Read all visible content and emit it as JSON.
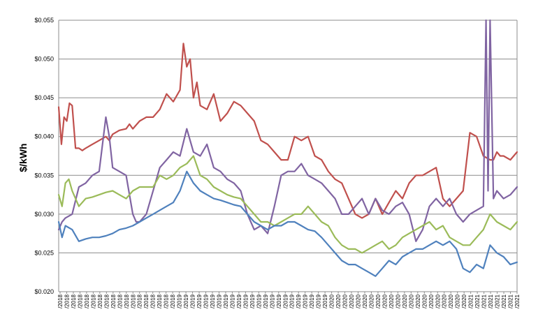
{
  "chart_data": {
    "type": "line",
    "title": "",
    "ylabel": "$/kWh",
    "xlabel": "",
    "ylim": [
      0.02,
      0.055
    ],
    "yticks": [
      "$0.020",
      "$0.025",
      "$0.030",
      "$0.035",
      "$0.040",
      "$0.045",
      "$0.050",
      "$0.055"
    ],
    "grid": true,
    "legend": "none",
    "x_tick_labels": [
      "/2018",
      "/2018",
      "/2018",
      "/2018",
      "/2018",
      "/2018",
      "/2018",
      "/2018",
      "/2018",
      "/2018",
      "/2018",
      "/2018",
      "/2018",
      "/2018",
      "/2018",
      "/2018",
      "/2018",
      "/2018",
      "/2019",
      "/2019",
      "/2019",
      "/2019",
      "/2019",
      "/2019",
      "/2019",
      "/2019",
      "/2019",
      "/2019",
      "/2019",
      "/2019",
      "/2019",
      "/2019",
      "/2019",
      "/2019",
      "/2019",
      "/2019",
      "/2019",
      "/2019",
      "/2019",
      "/2019",
      "/2019",
      "/2020",
      "/2020",
      "/2020",
      "/2020",
      "/2020",
      "/2020",
      "/2020",
      "/2020",
      "/2020",
      "/2020",
      "/2020",
      "/2020",
      "/2020",
      "/2020",
      "/2020",
      "/2020",
      "/2020",
      "/2020",
      "/2020",
      "/2020",
      "/2020",
      "/2021",
      "/2021",
      "/2021",
      "/2021",
      "/2021",
      "/2021",
      "/2021",
      "/2021"
    ],
    "x_domain": [
      0,
      68
    ],
    "series": [
      {
        "color": "#c0504d",
        "x": [
          0,
          0.4,
          0.8,
          1.2,
          1.6,
          2,
          2.5,
          3,
          3.5,
          4,
          5,
          6,
          7,
          7.5,
          8,
          9,
          10,
          10.5,
          11,
          12,
          13,
          14,
          15,
          16,
          17,
          18,
          18.5,
          19,
          19.5,
          20,
          20.5,
          21,
          22,
          23,
          24,
          25,
          26,
          27,
          28,
          29,
          30,
          31,
          32,
          33,
          34,
          35,
          36,
          37,
          38,
          39,
          40,
          41,
          42,
          43,
          44,
          45,
          46,
          47,
          48,
          49,
          50,
          51,
          52,
          53,
          54,
          55,
          56,
          57,
          58,
          59,
          60,
          61,
          62,
          63,
          64,
          64.5,
          65,
          65.5,
          66,
          67,
          68
        ],
        "y": [
          0.0438,
          0.039,
          0.0425,
          0.042,
          0.0443,
          0.044,
          0.0385,
          0.0385,
          0.0382,
          0.0385,
          0.039,
          0.0395,
          0.04,
          0.0395,
          0.0403,
          0.0408,
          0.041,
          0.0416,
          0.041,
          0.042,
          0.0425,
          0.0425,
          0.0435,
          0.0455,
          0.0445,
          0.046,
          0.052,
          0.049,
          0.05,
          0.045,
          0.047,
          0.044,
          0.0435,
          0.0455,
          0.042,
          0.043,
          0.0445,
          0.044,
          0.043,
          0.042,
          0.0395,
          0.039,
          0.038,
          0.037,
          0.037,
          0.04,
          0.0395,
          0.04,
          0.0375,
          0.037,
          0.0355,
          0.0345,
          0.034,
          0.032,
          0.03,
          0.0295,
          0.03,
          0.032,
          0.03,
          0.0315,
          0.033,
          0.032,
          0.034,
          0.035,
          0.035,
          0.0355,
          0.036,
          0.032,
          0.031,
          0.032,
          0.033,
          0.0405,
          0.04,
          0.0375,
          0.037,
          0.037,
          0.038,
          0.0375,
          0.0375,
          0.037,
          0.038
        ]
      },
      {
        "color": "#8064a2",
        "x": [
          0,
          0.5,
          1,
          2,
          3,
          4,
          5,
          6,
          7,
          7.5,
          8,
          9,
          10,
          11,
          11.5,
          12,
          13,
          14,
          15,
          16,
          17,
          18,
          19,
          20,
          21,
          22,
          23,
          24,
          25,
          26,
          27,
          28,
          29,
          30,
          31,
          32,
          33,
          34,
          35,
          36,
          37,
          38,
          39,
          40,
          41,
          42,
          43,
          44,
          45,
          46,
          47,
          48,
          49,
          50,
          51,
          52,
          53,
          54,
          55,
          56,
          57,
          58,
          59,
          60,
          61,
          62,
          63,
          63.4,
          63.7,
          64,
          64.5,
          65,
          66,
          67,
          68
        ],
        "y": [
          0.028,
          0.029,
          0.0295,
          0.03,
          0.0335,
          0.034,
          0.035,
          0.0355,
          0.0425,
          0.04,
          0.036,
          0.0355,
          0.035,
          0.03,
          0.029,
          0.029,
          0.03,
          0.033,
          0.036,
          0.037,
          0.038,
          0.0375,
          0.041,
          0.038,
          0.0375,
          0.039,
          0.036,
          0.0355,
          0.0345,
          0.034,
          0.033,
          0.03,
          0.028,
          0.0285,
          0.0275,
          0.031,
          0.035,
          0.0355,
          0.0355,
          0.0365,
          0.035,
          0.0345,
          0.034,
          0.033,
          0.032,
          0.03,
          0.03,
          0.031,
          0.032,
          0.03,
          0.032,
          0.0305,
          0.03,
          0.031,
          0.0315,
          0.03,
          0.0265,
          0.028,
          0.031,
          0.032,
          0.031,
          0.032,
          0.03,
          0.029,
          0.03,
          0.0305,
          0.031,
          0.055,
          0.033,
          0.055,
          0.032,
          0.033,
          0.032,
          0.0325,
          0.0335
        ]
      },
      {
        "color": "#9bbb59",
        "x": [
          0,
          0.5,
          1,
          1.5,
          2,
          3,
          4,
          5,
          6,
          7,
          8,
          9,
          10,
          11,
          12,
          13,
          14,
          15,
          16,
          17,
          18,
          19,
          20,
          21,
          22,
          23,
          24,
          25,
          26,
          27,
          28,
          29,
          30,
          31,
          32,
          33,
          34,
          35,
          36,
          37,
          38,
          39,
          40,
          41,
          42,
          43,
          44,
          45,
          46,
          47,
          48,
          49,
          50,
          51,
          52,
          53,
          54,
          55,
          56,
          57,
          58,
          59,
          60,
          61,
          62,
          63,
          64,
          65,
          66,
          67,
          68
        ],
        "y": [
          0.0325,
          0.031,
          0.034,
          0.0345,
          0.033,
          0.031,
          0.032,
          0.0322,
          0.0325,
          0.0328,
          0.033,
          0.0325,
          0.032,
          0.033,
          0.0335,
          0.0335,
          0.0335,
          0.035,
          0.0345,
          0.035,
          0.036,
          0.0365,
          0.0375,
          0.035,
          0.0345,
          0.0335,
          0.033,
          0.0325,
          0.0322,
          0.032,
          0.031,
          0.03,
          0.029,
          0.029,
          0.0285,
          0.029,
          0.0295,
          0.03,
          0.03,
          0.031,
          0.03,
          0.029,
          0.0285,
          0.027,
          0.026,
          0.0255,
          0.0255,
          0.025,
          0.0255,
          0.026,
          0.0265,
          0.0255,
          0.026,
          0.027,
          0.0275,
          0.028,
          0.0285,
          0.029,
          0.028,
          0.0285,
          0.027,
          0.0265,
          0.026,
          0.026,
          0.027,
          0.028,
          0.03,
          0.029,
          0.0285,
          0.028,
          0.029
        ]
      },
      {
        "color": "#4f81bd",
        "x": [
          0,
          0.5,
          1,
          2,
          3,
          4,
          5,
          6,
          7,
          8,
          9,
          10,
          11,
          12,
          13,
          14,
          15,
          16,
          17,
          18,
          19,
          20,
          21,
          22,
          23,
          24,
          25,
          26,
          27,
          28,
          29,
          30,
          31,
          32,
          33,
          34,
          35,
          36,
          37,
          38,
          39,
          40,
          41,
          42,
          43,
          44,
          45,
          46,
          47,
          48,
          49,
          50,
          51,
          52,
          53,
          54,
          55,
          56,
          57,
          58,
          59,
          60,
          61,
          62,
          63,
          64,
          65,
          66,
          67,
          68
        ],
        "y": [
          0.029,
          0.027,
          0.0285,
          0.028,
          0.0265,
          0.0268,
          0.027,
          0.027,
          0.0272,
          0.0275,
          0.028,
          0.0282,
          0.0285,
          0.029,
          0.0295,
          0.03,
          0.0305,
          0.031,
          0.0315,
          0.033,
          0.0355,
          0.034,
          0.033,
          0.0325,
          0.032,
          0.0318,
          0.0315,
          0.0312,
          0.031,
          0.03,
          0.029,
          0.0285,
          0.028,
          0.0285,
          0.0285,
          0.029,
          0.029,
          0.0285,
          0.028,
          0.0278,
          0.027,
          0.026,
          0.025,
          0.024,
          0.0235,
          0.0235,
          0.023,
          0.0225,
          0.022,
          0.023,
          0.024,
          0.0235,
          0.0245,
          0.025,
          0.0255,
          0.0255,
          0.026,
          0.0265,
          0.026,
          0.0265,
          0.0255,
          0.023,
          0.0225,
          0.0235,
          0.023,
          0.026,
          0.025,
          0.0245,
          0.0235,
          0.0238
        ]
      }
    ]
  }
}
